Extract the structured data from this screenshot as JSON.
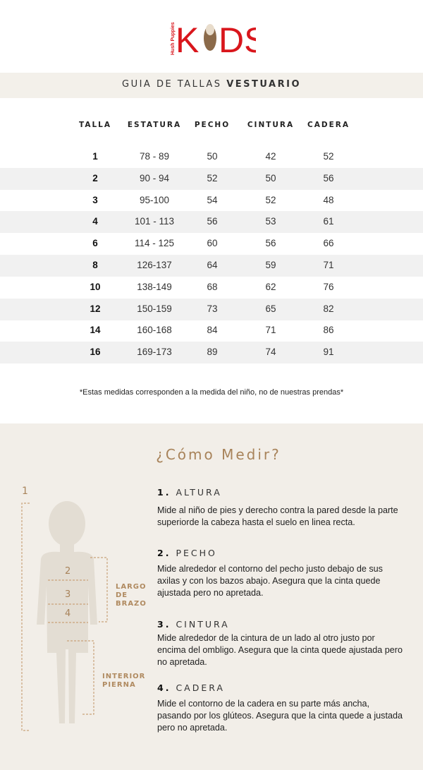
{
  "brand": {
    "logo_text": "KIDS",
    "logo_small": "Hush Puppies",
    "color": "#d9161c"
  },
  "title": {
    "prefix": "GUIA DE TALLAS",
    "emph": "VESTUARIO"
  },
  "table": {
    "headers": [
      "TALLA",
      "ESTATURA",
      "PECHO",
      "CINTURA",
      "CADERA"
    ],
    "rows": [
      [
        "1",
        "78 - 89",
        "50",
        "42",
        "52"
      ],
      [
        "2",
        "90 - 94",
        "52",
        "50",
        "56"
      ],
      [
        "3",
        "95-100",
        "54",
        "52",
        "48"
      ],
      [
        "4",
        "101 - 113",
        "56",
        "53",
        "61"
      ],
      [
        "6",
        "114 - 125",
        "60",
        "56",
        "66"
      ],
      [
        "8",
        "126-137",
        "64",
        "59",
        "71"
      ],
      [
        "10",
        "138-149",
        "68",
        "62",
        "76"
      ],
      [
        "12",
        "150-159",
        "73",
        "65",
        "82"
      ],
      [
        "14",
        "160-168",
        "84",
        "71",
        "86"
      ],
      [
        "16",
        "169-173",
        "89",
        "74",
        "91"
      ]
    ]
  },
  "note": "*Estas medidas corresponden a la medida del niño, no de nuestras prendas*",
  "how": {
    "title": "¿Cómo Medir?",
    "accent": "#a8835a",
    "diagram": {
      "n1": "1",
      "n2": "2",
      "n3": "3",
      "n4": "4",
      "arm": [
        "LARGO",
        "DE",
        "BRAZO"
      ],
      "leg": [
        "INTERIOR",
        "PIERNA"
      ]
    },
    "steps": [
      {
        "num": "1.",
        "label": "ALTURA",
        "text": "Mide al niño de pies y derecho contra la pared desde la parte superiorde la cabeza hasta el suelo en linea recta."
      },
      {
        "num": "2.",
        "label": "PECHO",
        "text": "Mide alrededor el contorno del pecho  justo debajo de sus axilas y con los bazos abajo. Asegura que la cinta quede ajustada pero no apretada."
      },
      {
        "num": "3.",
        "label": "CINTURA",
        "text": "Mide alrededor de la cintura de un lado al otro justo por encima del ombligo. Asegura que la cinta quede ajustada pero no apretada."
      },
      {
        "num": "4.",
        "label": "CADERA",
        "text": "Mide el contorno de la cadera en su parte más ancha, pasando por los glúteos. Asegura que la cinta quede a justada pero no apretada."
      }
    ]
  }
}
